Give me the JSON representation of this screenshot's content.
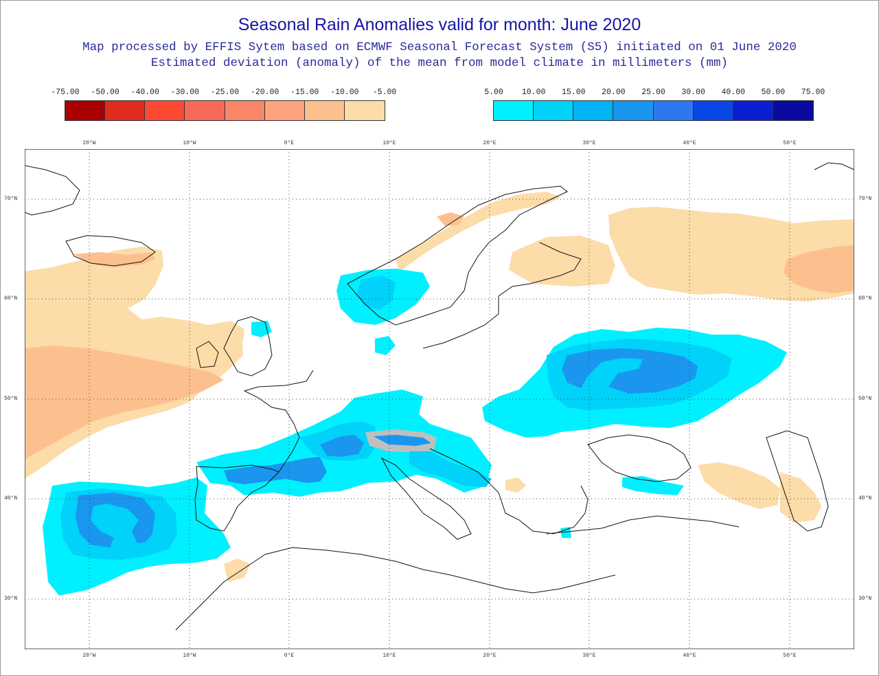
{
  "header": {
    "title": "Seasonal Rain Anomalies valid for month: June 2020",
    "subtitle1": "Map processed by EFFIS Sytem based on ECMWF Seasonal Forecast System (S5) initiated on 01 June 2020",
    "subtitle2": "Estimated deviation (anomaly) of the mean from model climate in millimeters (mm)"
  },
  "legend_negative": {
    "labels": [
      "-75.00",
      "-50.00",
      "-40.00",
      "-30.00",
      "-25.00",
      "-20.00",
      "-15.00",
      "-10.00",
      "-5.00"
    ],
    "colors": [
      "#a80000",
      "#e02b1e",
      "#ff4a33",
      "#f9695a",
      "#fa8668",
      "#fca37d",
      "#fcc08f",
      "#fcdca8"
    ]
  },
  "legend_positive": {
    "labels": [
      "5.00",
      "10.00",
      "15.00",
      "20.00",
      "25.00",
      "30.00",
      "40.00",
      "50.00",
      "75.00"
    ],
    "colors": [
      "#00f0ff",
      "#00d2fa",
      "#00b4f5",
      "#1a96ee",
      "#2d78f0",
      "#0a46e6",
      "#0a1ed2",
      "#0a0aa0"
    ]
  },
  "map": {
    "lon_labels": [
      "20°W",
      "10°W",
      "0°E",
      "10°E",
      "20°E",
      "30°E",
      "40°E",
      "50°E"
    ],
    "lat_labels": [
      "70°N",
      "60°N",
      "50°N",
      "40°N",
      "30°N"
    ],
    "colors": {
      "dry_light": "#fcdca8",
      "dry_mid": "#fcc08f",
      "wet_light": "#00f0ff",
      "wet_mid": "#00d2fa",
      "wet_strong": "#1a96ee",
      "wet_peak": "#0a1ed2",
      "contour": "#aaaaaa",
      "coast": "#111111",
      "grid": "#444444",
      "frame": "#333333"
    }
  }
}
